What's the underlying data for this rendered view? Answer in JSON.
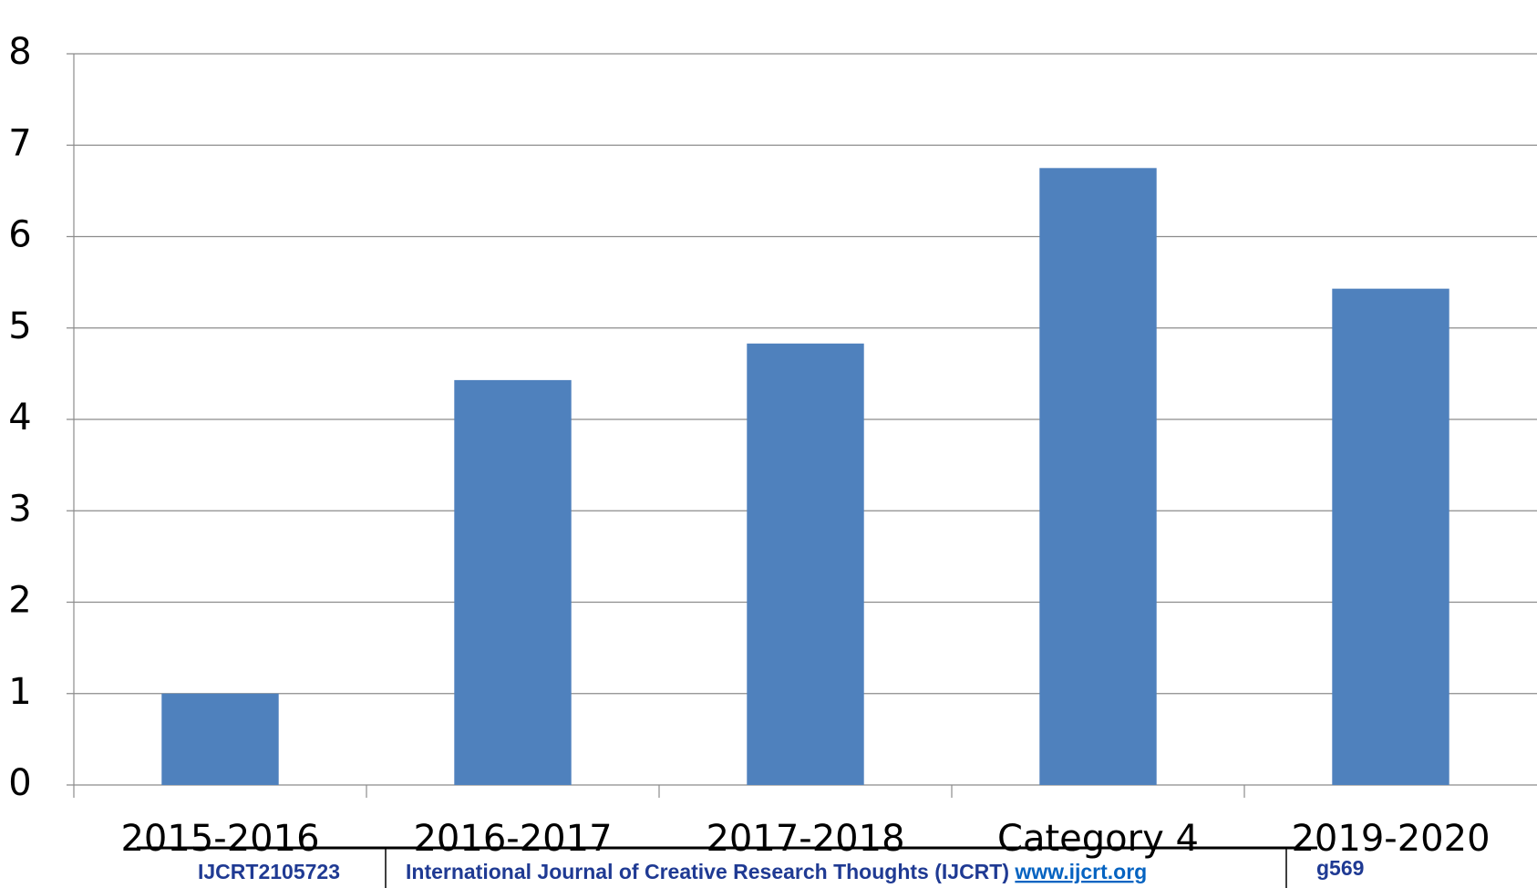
{
  "chart_data": {
    "type": "bar",
    "categories": [
      "2015-2016",
      "2016-2017",
      "2017-2018",
      "Category 4",
      "2019-2020"
    ],
    "values": [
      1,
      4.43,
      4.83,
      6.75,
      5.43
    ],
    "color": "#4f81bd",
    "ylim": [
      0,
      8
    ],
    "yticks": [
      0,
      1,
      2,
      3,
      4,
      5,
      6,
      7,
      8
    ],
    "grid": true
  },
  "footer": {
    "id": "IJCRT2105723",
    "journal": "International Journal of Creative Research Thoughts (IJCRT)",
    "url": "www.ijcrt.org",
    "page": "g569"
  }
}
